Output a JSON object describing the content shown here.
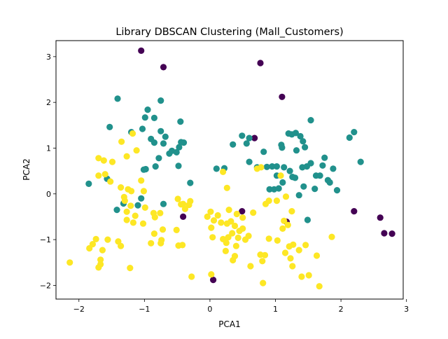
{
  "chart_data": {
    "type": "scatter",
    "title": "Library DBSCAN Clustering (Mall_Customers)",
    "xlabel": "PCA1",
    "ylabel": "PCA2",
    "xlim": [
      -2.35,
      2.95
    ],
    "ylim": [
      -2.3,
      3.35
    ],
    "xticks": [
      -2,
      -1,
      0,
      1,
      2,
      3
    ],
    "yticks": [
      -2,
      -1,
      0,
      1,
      2,
      3
    ],
    "grid": false,
    "legend": "none",
    "series": [
      {
        "color": "#440154",
        "points": [
          [
            -1.05,
            3.13
          ],
          [
            -0.71,
            2.77
          ],
          [
            0.77,
            2.86
          ],
          [
            1.1,
            2.12
          ],
          [
            0.68,
            1.22
          ],
          [
            -0.41,
            -0.5
          ],
          [
            0.49,
            -0.38
          ],
          [
            1.17,
            -0.61
          ],
          [
            2.2,
            -0.38
          ],
          [
            2.6,
            -0.52
          ],
          [
            2.66,
            -0.86
          ],
          [
            2.78,
            -0.87
          ],
          [
            0.05,
            -1.88
          ]
        ]
      },
      {
        "color": "#21918c",
        "points": [
          [
            -1.41,
            2.08
          ],
          [
            -0.75,
            2.04
          ],
          [
            -1.53,
            1.46
          ],
          [
            -1.2,
            1.35
          ],
          [
            -0.95,
            1.84
          ],
          [
            -0.99,
            1.67
          ],
          [
            -0.85,
            1.66
          ],
          [
            -0.75,
            1.37
          ],
          [
            -0.68,
            1.25
          ],
          [
            -0.45,
            1.58
          ],
          [
            -1.03,
            1.42
          ],
          [
            -0.9,
            1.2
          ],
          [
            -0.85,
            1.12
          ],
          [
            -0.71,
            1.1
          ],
          [
            -0.44,
            1.13
          ],
          [
            -0.4,
            1.12
          ],
          [
            -0.62,
            0.88
          ],
          [
            -0.58,
            0.94
          ],
          [
            -0.51,
            0.91
          ],
          [
            -0.47,
            1.02
          ],
          [
            -0.78,
            0.78
          ],
          [
            -0.48,
            0.61
          ],
          [
            -0.83,
            0.6
          ],
          [
            -0.98,
            0.54
          ],
          [
            -1.01,
            0.53
          ],
          [
            -1.85,
            0.22
          ],
          [
            -1.57,
            0.33
          ],
          [
            -0.3,
            0.24
          ],
          [
            -1.42,
            -0.35
          ],
          [
            -1.32,
            -0.21
          ],
          [
            -1.1,
            -0.25
          ],
          [
            -1.05,
            -0.1
          ],
          [
            -0.71,
            -0.22
          ],
          [
            0.1,
            0.55
          ],
          [
            0.22,
            0.56
          ],
          [
            0.35,
            1.08
          ],
          [
            0.49,
            1.27
          ],
          [
            0.56,
            1.1
          ],
          [
            0.6,
            1.22
          ],
          [
            0.6,
            0.7
          ],
          [
            0.72,
            0.58
          ],
          [
            0.82,
            0.92
          ],
          [
            0.87,
            0.59
          ],
          [
            0.95,
            0.6
          ],
          [
            1.09,
            1.07
          ],
          [
            1.1,
            1.01
          ],
          [
            1.2,
            1.32
          ],
          [
            1.25,
            1.3
          ],
          [
            1.31,
            1.33
          ],
          [
            1.38,
            1.26
          ],
          [
            1.45,
            1.02
          ],
          [
            1.54,
            1.61
          ],
          [
            1.42,
            1.15
          ],
          [
            1.32,
            0.95
          ],
          [
            1.02,
            0.4
          ],
          [
            1.02,
            0.6
          ],
          [
            1.13,
            0.58
          ],
          [
            1.22,
            0.5
          ],
          [
            1.26,
            0.37
          ],
          [
            1.3,
            0.35
          ],
          [
            0.91,
            0.1
          ],
          [
            0.98,
            0.1
          ],
          [
            1.05,
            0.12
          ],
          [
            1.11,
            0.25
          ],
          [
            1.41,
            0.58
          ],
          [
            1.48,
            0.6
          ],
          [
            1.54,
            0.67
          ],
          [
            1.62,
            0.4
          ],
          [
            1.43,
            0.16
          ],
          [
            1.6,
            0.11
          ],
          [
            1.68,
            0.4
          ],
          [
            1.8,
            0.3
          ],
          [
            1.83,
            0.25
          ],
          [
            1.88,
            0.55
          ],
          [
            1.94,
            0.08
          ],
          [
            1.72,
            0.62
          ],
          [
            1.75,
            0.79
          ],
          [
            2.13,
            1.23
          ],
          [
            2.2,
            1.35
          ],
          [
            2.3,
            0.7
          ],
          [
            1.49,
            -0.57
          ],
          [
            1.36,
            -0.03
          ]
        ]
      },
      {
        "color": "#fde725",
        "points": [
          [
            -1.7,
            0.78
          ],
          [
            -1.62,
            0.73
          ],
          [
            -1.7,
            0.4
          ],
          [
            -1.6,
            0.43
          ],
          [
            -1.49,
            0.7
          ],
          [
            -1.52,
            0.27
          ],
          [
            -1.35,
            1.14
          ],
          [
            -1.27,
            0.82
          ],
          [
            -1.18,
            1.32
          ],
          [
            -1.12,
            0.95
          ],
          [
            -1.36,
            0.14
          ],
          [
            -1.25,
            0.1
          ],
          [
            -1.2,
            0.06
          ],
          [
            -1.05,
            0.29
          ],
          [
            -1.01,
            0.06
          ],
          [
            -1.31,
            -0.07
          ],
          [
            -1.3,
            -0.15
          ],
          [
            -1.21,
            -0.26
          ],
          [
            -1.27,
            -0.39
          ],
          [
            -1.14,
            -0.48
          ],
          [
            -1.27,
            -0.57
          ],
          [
            -1.17,
            -0.63
          ],
          [
            -1.02,
            -0.65
          ],
          [
            -0.99,
            -0.3
          ],
          [
            -0.86,
            -0.42
          ],
          [
            -0.76,
            -0.42
          ],
          [
            -0.84,
            -0.51
          ],
          [
            -0.72,
            -0.78
          ],
          [
            -0.85,
            -0.87
          ],
          [
            -0.74,
            -1.01
          ],
          [
            -0.75,
            -1.08
          ],
          [
            -0.9,
            -1.08
          ],
          [
            -0.51,
            -0.79
          ],
          [
            -0.48,
            -1.13
          ],
          [
            -0.42,
            -1.12
          ],
          [
            -0.3,
            -0.16
          ],
          [
            -0.32,
            -0.24
          ],
          [
            -0.38,
            -0.33
          ],
          [
            -0.44,
            -0.23
          ],
          [
            -0.49,
            -0.11
          ],
          [
            -0.41,
            -0.22
          ],
          [
            -0.28,
            -1.81
          ],
          [
            -1.79,
            -1.1
          ],
          [
            -1.84,
            -1.19
          ],
          [
            -1.74,
            -0.99
          ],
          [
            -1.64,
            -1.23
          ],
          [
            -1.67,
            -1.44
          ],
          [
            -1.67,
            -1.54
          ],
          [
            -1.7,
            -1.61
          ],
          [
            -2.14,
            -1.5
          ],
          [
            -1.4,
            -1.04
          ],
          [
            -1.36,
            -1.14
          ],
          [
            -1.22,
            -1.62
          ],
          [
            -1.56,
            -1.0
          ],
          [
            0.01,
            -0.39
          ],
          [
            -0.04,
            -0.5
          ],
          [
            0.06,
            -0.58
          ],
          [
            0.12,
            -0.47
          ],
          [
            0.17,
            -0.63
          ],
          [
            0.02,
            -0.74
          ],
          [
            0.04,
            -0.95
          ],
          [
            0.26,
            -0.65
          ],
          [
            0.32,
            -0.6
          ],
          [
            0.38,
            -0.7
          ],
          [
            0.45,
            -0.81
          ],
          [
            0.5,
            -0.76
          ],
          [
            0.2,
            0.48
          ],
          [
            0.26,
            0.13
          ],
          [
            0.29,
            -0.35
          ],
          [
            0.41,
            -0.44
          ],
          [
            0.5,
            -0.52
          ],
          [
            0.34,
            -0.86
          ],
          [
            0.28,
            -0.95
          ],
          [
            0.25,
            -1.07
          ],
          [
            0.4,
            -1.14
          ],
          [
            0.35,
            -1.45
          ],
          [
            0.24,
            -1.25
          ],
          [
            0.02,
            -1.76
          ],
          [
            0.54,
            -1.0
          ],
          [
            0.59,
            -0.92
          ],
          [
            0.43,
            -0.96
          ],
          [
            0.62,
            -1.58
          ],
          [
            0.77,
            -1.33
          ],
          [
            0.81,
            -1.95
          ],
          [
            0.8,
            -1.47
          ],
          [
            0.9,
            -0.98
          ],
          [
            0.84,
            -1.34
          ],
          [
            0.72,
            0.55
          ],
          [
            0.78,
            0.58
          ],
          [
            0.85,
            -0.22
          ],
          [
            0.9,
            -0.15
          ],
          [
            1.02,
            -0.15
          ],
          [
            1.11,
            -0.76
          ],
          [
            1.13,
            -0.59
          ],
          [
            1.03,
            -1.02
          ],
          [
            1.15,
            -1.29
          ],
          [
            1.08,
            0.4
          ],
          [
            1.16,
            -0.06
          ],
          [
            1.25,
            -0.38
          ],
          [
            1.19,
            -0.68
          ],
          [
            1.21,
            -1.15
          ],
          [
            1.27,
            -1.11
          ],
          [
            1.23,
            -1.41
          ],
          [
            1.36,
            -1.23
          ],
          [
            1.46,
            -1.12
          ],
          [
            1.4,
            -1.81
          ],
          [
            1.51,
            -1.78
          ],
          [
            1.63,
            -1.35
          ],
          [
            1.67,
            -2.02
          ],
          [
            1.86,
            -0.94
          ],
          [
            1.26,
            -1.58
          ],
          [
            0.2,
            -0.99
          ],
          [
            0.66,
            -0.41
          ],
          [
            0.38,
            -1.36
          ]
        ]
      }
    ]
  }
}
